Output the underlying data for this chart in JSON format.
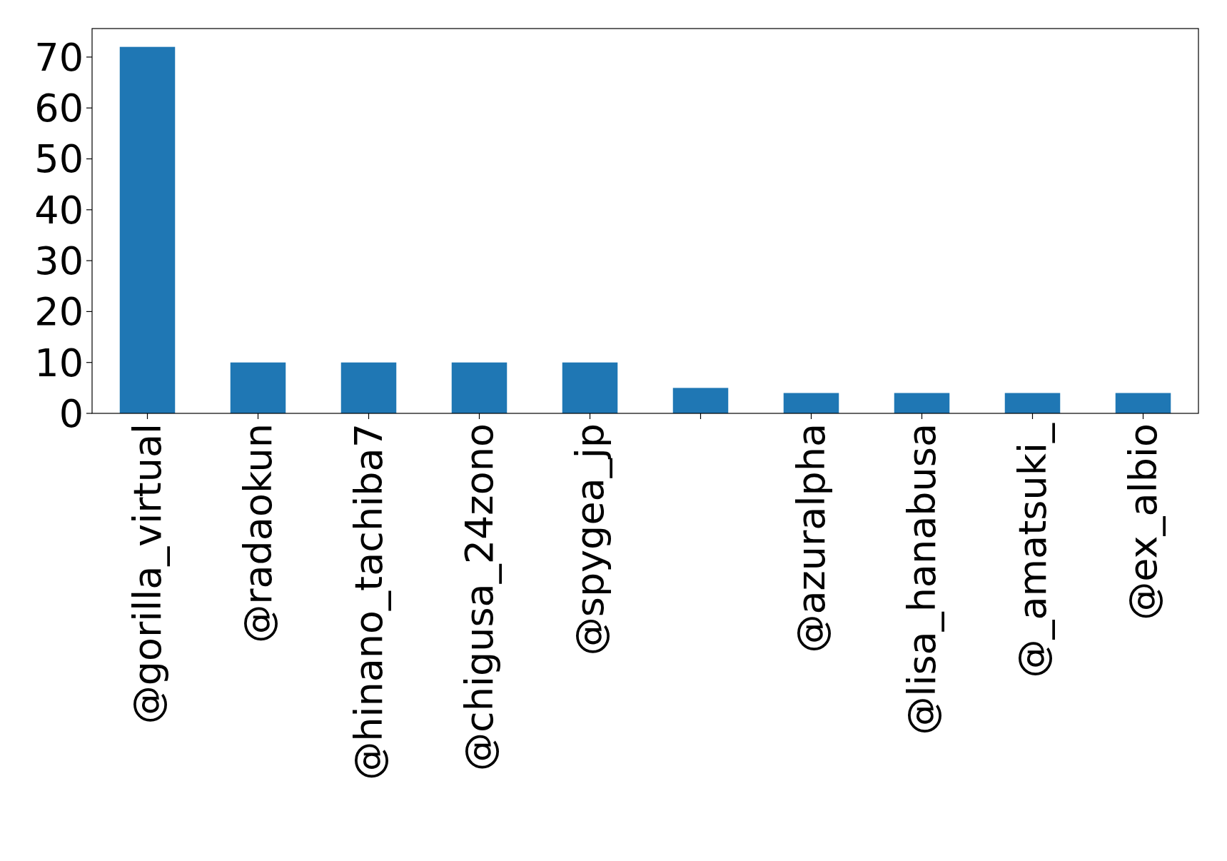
{
  "chart_data": {
    "type": "bar",
    "categories": [
      "@gorilla_virtual",
      "@radaokun",
      "@hinano_tachiba7",
      "@chigusa_24zono",
      "@spygea_jp",
      null,
      "@azuralpha",
      "@lisa_hanabusa",
      "@_amatsuki_",
      "@ex_albio"
    ],
    "values": [
      72,
      10,
      10,
      10,
      10,
      5,
      4,
      4,
      4,
      4
    ],
    "color": "#1f77b4",
    "ylim": [
      0,
      75.6
    ],
    "yticks": [
      0,
      10,
      20,
      30,
      40,
      50,
      60,
      70
    ],
    "grid": false
  }
}
